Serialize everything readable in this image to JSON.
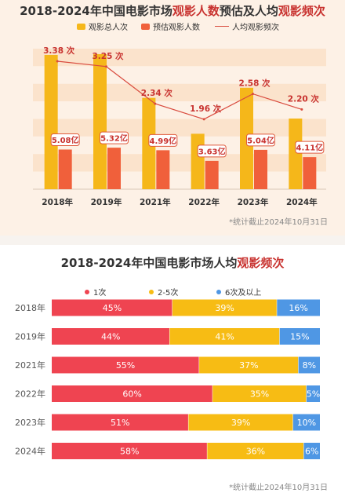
{
  "chart_data": [
    {
      "type": "bar",
      "title_prefix": "2018-2024年中国电影市场",
      "title_hl1": "观影人数",
      "title_mid": "预估及人均",
      "title_hl2": "观影频次",
      "categories": [
        "2018年",
        "2019年",
        "2021年",
        "2022年",
        "2023年",
        "2024年"
      ],
      "series": [
        {
          "name": "观影总人次",
          "type": "bar",
          "color": "#f5b71a",
          "values": [
            17.2,
            17.3,
            11.7,
            7.1,
            12.99,
            9.05
          ]
        },
        {
          "name": "预估观影人数",
          "type": "bar",
          "color": "#f0603b",
          "values": [
            5.08,
            5.32,
            4.99,
            3.63,
            5.04,
            4.11
          ],
          "labels": [
            "5.08亿",
            "5.32亿",
            "4.99亿",
            "3.63亿",
            "5.04亿",
            "4.11亿"
          ]
        },
        {
          "name": "人均观影频次",
          "type": "line",
          "color": "#d94b3e",
          "values": [
            3.38,
            3.25,
            2.34,
            1.96,
            2.58,
            2.2
          ],
          "labels": [
            "3.38 次",
            "3.25 次",
            "2.34 次",
            "1.96 次",
            "2.58 次",
            "2.20 次"
          ]
        }
      ],
      "ylim": [
        0,
        18
      ],
      "grid": "banded",
      "legend": "top",
      "footnote": "*统计截止2024年10月31日"
    },
    {
      "type": "bar",
      "stacked": true,
      "orientation": "horizontal",
      "title_prefix": "2018-2024年中国电影市场人均",
      "title_hl": "观影频次",
      "categories": [
        "2018年",
        "2019年",
        "2021年",
        "2022年",
        "2023年",
        "2024年"
      ],
      "series": [
        {
          "name": "1次",
          "color": "#ef4451",
          "values": [
            45,
            44,
            55,
            60,
            51,
            58
          ]
        },
        {
          "name": "2-5次",
          "color": "#f7bc14",
          "values": [
            39,
            41,
            37,
            35,
            39,
            36
          ]
        },
        {
          "name": "6次及以上",
          "color": "#4f97e4",
          "values": [
            16,
            15,
            8,
            5,
            10,
            6
          ]
        }
      ],
      "unit": "%",
      "xlim": [
        0,
        100
      ],
      "legend": "top",
      "footnote": "*统计截止2024年10月31日"
    }
  ]
}
